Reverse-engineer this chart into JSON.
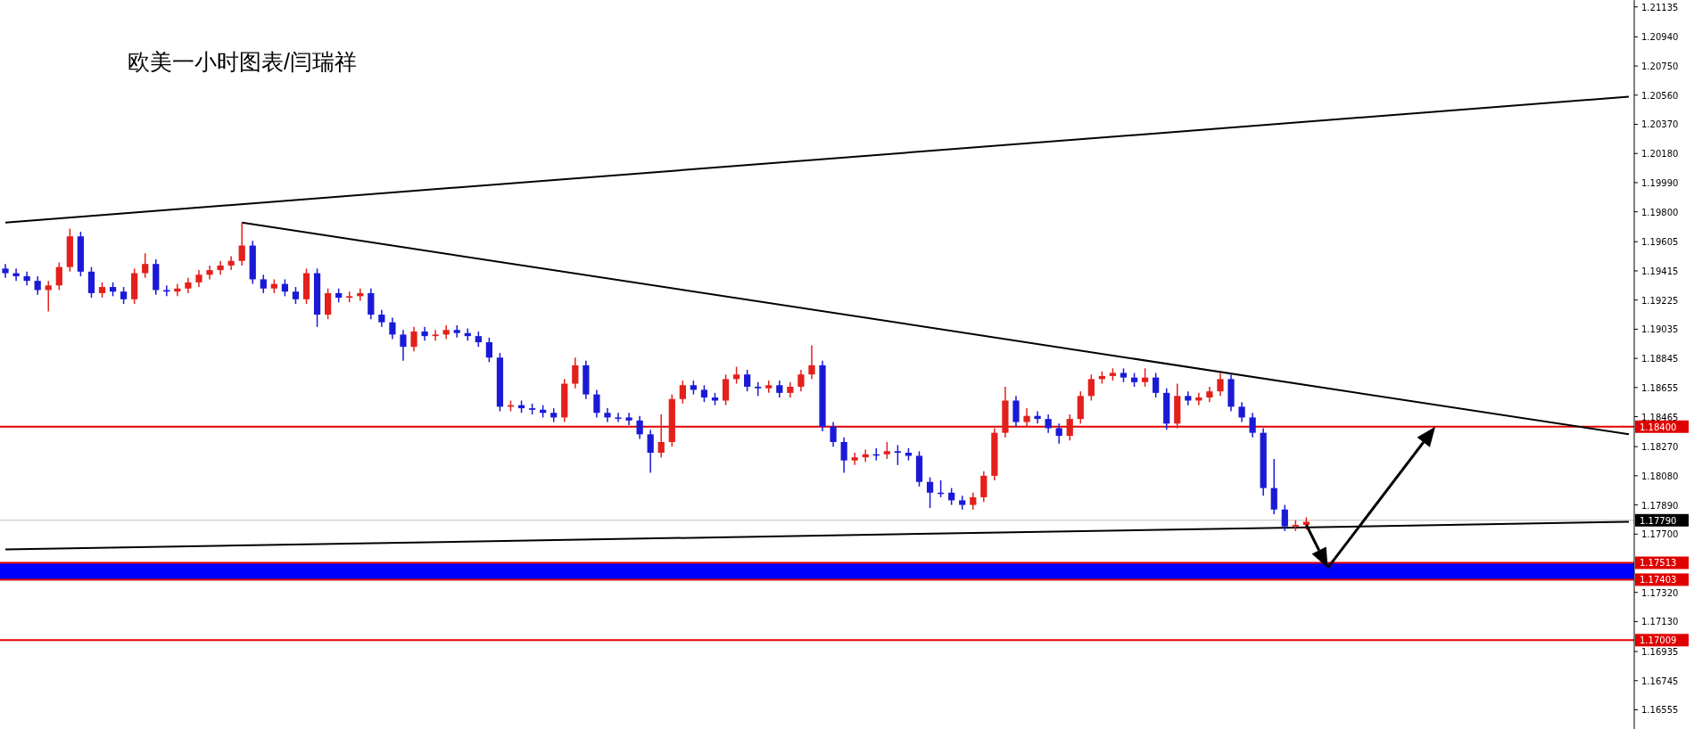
{
  "chart_data": {
    "type": "candlestick",
    "title": "欧美一小时图表/闫瑞祥",
    "categories": [
      null,
      null,
      null,
      null,
      null,
      null,
      null,
      null,
      null,
      null,
      null,
      null,
      null,
      null,
      null,
      null,
      null,
      null,
      null,
      null,
      null,
      null,
      null,
      null,
      null,
      null,
      null,
      null,
      null,
      null,
      null,
      null,
      null,
      null,
      null,
      null,
      null,
      null,
      null,
      null,
      null,
      null,
      null,
      null,
      null,
      null,
      null,
      null,
      null,
      null,
      null,
      null,
      null,
      null,
      null,
      null,
      null,
      null,
      null,
      null,
      null,
      null,
      null,
      null,
      null,
      null,
      null,
      null,
      null,
      null,
      null,
      null,
      null,
      null,
      null,
      null,
      null,
      null,
      null,
      null,
      null,
      null,
      null,
      null,
      null,
      null,
      null,
      null,
      null,
      null,
      null,
      null,
      null,
      null,
      null,
      null,
      null,
      null,
      null,
      null,
      null,
      null,
      null,
      null,
      null,
      null,
      null,
      null,
      null,
      null,
      null,
      null,
      null,
      null,
      null,
      null,
      null,
      null,
      null,
      null,
      null,
      null,
      null,
      null,
      null,
      null,
      null,
      null,
      null,
      null,
      null,
      null,
      null,
      null,
      null,
      null,
      null,
      null,
      null,
      null,
      null,
      null,
      null,
      null,
      null,
      null,
      null,
      null,
      null,
      null,
      null,
      null
    ],
    "ohlc": [
      [
        1.1943,
        1.1946,
        1.1937,
        1.194
      ],
      [
        1.194,
        1.1943,
        1.1935,
        1.1938
      ],
      [
        1.1938,
        1.1941,
        1.1932,
        1.1935
      ],
      [
        1.1935,
        1.1938,
        1.1926,
        1.1929
      ],
      [
        1.1929,
        1.1935,
        1.1915,
        1.1932
      ],
      [
        1.1932,
        1.1947,
        1.1929,
        1.1944
      ],
      [
        1.1944,
        1.1969,
        1.1941,
        1.1964
      ],
      [
        1.1964,
        1.1967,
        1.1938,
        1.1941
      ],
      [
        1.1941,
        1.1944,
        1.1924,
        1.1927
      ],
      [
        1.1927,
        1.1934,
        1.1924,
        1.1931
      ],
      [
        1.1931,
        1.1934,
        1.1925,
        1.1928
      ],
      [
        1.1928,
        1.1931,
        1.192,
        1.1923
      ],
      [
        1.1923,
        1.1943,
        1.192,
        1.194
      ],
      [
        1.194,
        1.1953,
        1.1937,
        1.1946
      ],
      [
        1.1946,
        1.1949,
        1.1926,
        1.1929
      ],
      [
        1.1929,
        1.1932,
        1.1925,
        1.1928
      ],
      [
        1.1928,
        1.1933,
        1.1925,
        1.193
      ],
      [
        1.193,
        1.1937,
        1.1927,
        1.1934
      ],
      [
        1.1934,
        1.1942,
        1.1931,
        1.1939
      ],
      [
        1.1939,
        1.1945,
        1.1936,
        1.1942
      ],
      [
        1.1942,
        1.1948,
        1.1939,
        1.1945
      ],
      [
        1.1945,
        1.1951,
        1.1942,
        1.1948
      ],
      [
        1.1948,
        1.1973,
        1.1945,
        1.1958
      ],
      [
        1.1958,
        1.1961,
        1.1933,
        1.1936
      ],
      [
        1.1936,
        1.1939,
        1.1927,
        1.193
      ],
      [
        1.193,
        1.1936,
        1.1927,
        1.1933
      ],
      [
        1.1933,
        1.1936,
        1.1925,
        1.1928
      ],
      [
        1.1928,
        1.1931,
        1.192,
        1.1923
      ],
      [
        1.1923,
        1.1943,
        1.192,
        1.194
      ],
      [
        1.194,
        1.1943,
        1.1905,
        1.1913
      ],
      [
        1.1913,
        1.193,
        1.191,
        1.1927
      ],
      [
        1.1927,
        1.193,
        1.1921,
        1.1924
      ],
      [
        1.1924,
        1.1928,
        1.1921,
        1.1925
      ],
      [
        1.1925,
        1.193,
        1.1922,
        1.1927
      ],
      [
        1.1927,
        1.193,
        1.191,
        1.1913
      ],
      [
        1.1913,
        1.1916,
        1.1905,
        1.1908
      ],
      [
        1.1908,
        1.1911,
        1.1897,
        1.19
      ],
      [
        1.19,
        1.1903,
        1.1883,
        1.1892
      ],
      [
        1.1892,
        1.1905,
        1.1889,
        1.1902
      ],
      [
        1.1902,
        1.1905,
        1.1896,
        1.1899
      ],
      [
        1.1899,
        1.1903,
        1.1896,
        1.19
      ],
      [
        1.19,
        1.1906,
        1.1897,
        1.1903
      ],
      [
        1.1903,
        1.1906,
        1.1898,
        1.1901
      ],
      [
        1.1901,
        1.1904,
        1.1896,
        1.1899
      ],
      [
        1.1899,
        1.1902,
        1.1892,
        1.1895
      ],
      [
        1.1895,
        1.1898,
        1.1882,
        1.1885
      ],
      [
        1.1885,
        1.1888,
        1.185,
        1.1853
      ],
      [
        1.1853,
        1.1857,
        1.185,
        1.1854
      ],
      [
        1.1854,
        1.1857,
        1.1849,
        1.1852
      ],
      [
        1.1852,
        1.1855,
        1.1848,
        1.1851
      ],
      [
        1.1851,
        1.1854,
        1.1846,
        1.1849
      ],
      [
        1.1849,
        1.1852,
        1.1843,
        1.1846
      ],
      [
        1.1846,
        1.1871,
        1.1843,
        1.1868
      ],
      [
        1.1868,
        1.1885,
        1.1865,
        1.188
      ],
      [
        1.188,
        1.1883,
        1.1858,
        1.1861
      ],
      [
        1.1861,
        1.1864,
        1.1846,
        1.1849
      ],
      [
        1.1849,
        1.1852,
        1.1843,
        1.1846
      ],
      [
        1.1846,
        1.1849,
        1.1843,
        1.1846
      ],
      [
        1.1846,
        1.1849,
        1.1841,
        1.1844
      ],
      [
        1.1844,
        1.1847,
        1.1832,
        1.1835
      ],
      [
        1.1835,
        1.1838,
        1.181,
        1.1823
      ],
      [
        1.1823,
        1.1848,
        1.182,
        1.183
      ],
      [
        1.183,
        1.1861,
        1.1827,
        1.1858
      ],
      [
        1.1858,
        1.187,
        1.1855,
        1.1867
      ],
      [
        1.1867,
        1.187,
        1.1861,
        1.1864
      ],
      [
        1.1864,
        1.1867,
        1.1856,
        1.1859
      ],
      [
        1.1859,
        1.1862,
        1.1854,
        1.1857
      ],
      [
        1.1857,
        1.1874,
        1.1854,
        1.1871
      ],
      [
        1.1871,
        1.1879,
        1.1868,
        1.1874
      ],
      [
        1.1874,
        1.1877,
        1.1863,
        1.1866
      ],
      [
        1.1866,
        1.1869,
        1.186,
        1.1865
      ],
      [
        1.1865,
        1.187,
        1.1862,
        1.1867
      ],
      [
        1.1867,
        1.187,
        1.1859,
        1.1862
      ],
      [
        1.1862,
        1.1869,
        1.1859,
        1.1866
      ],
      [
        1.1866,
        1.1877,
        1.1863,
        1.1874
      ],
      [
        1.1874,
        1.1893,
        1.1871,
        1.188
      ],
      [
        1.188,
        1.1883,
        1.1837,
        1.184
      ],
      [
        1.184,
        1.1843,
        1.1827,
        1.183
      ],
      [
        1.183,
        1.1833,
        1.181,
        1.1818
      ],
      [
        1.1818,
        1.1823,
        1.1815,
        1.182
      ],
      [
        1.182,
        1.1825,
        1.1817,
        1.1822
      ],
      [
        1.1822,
        1.1826,
        1.1818,
        1.1822
      ],
      [
        1.1822,
        1.183,
        1.1819,
        1.1824
      ],
      [
        1.1824,
        1.1828,
        1.1815,
        1.1823
      ],
      [
        1.1823,
        1.1826,
        1.1818,
        1.1821
      ],
      [
        1.1821,
        1.1824,
        1.1801,
        1.1804
      ],
      [
        1.1804,
        1.1807,
        1.1787,
        1.1797
      ],
      [
        1.1797,
        1.1805,
        1.1794,
        1.1797
      ],
      [
        1.1797,
        1.18,
        1.1789,
        1.1792
      ],
      [
        1.1792,
        1.1795,
        1.1786,
        1.1789
      ],
      [
        1.1789,
        1.1797,
        1.1786,
        1.1794
      ],
      [
        1.1794,
        1.1811,
        1.1791,
        1.1808
      ],
      [
        1.1808,
        1.1839,
        1.1805,
        1.1836
      ],
      [
        1.1836,
        1.1866,
        1.1833,
        1.1857
      ],
      [
        1.1857,
        1.186,
        1.184,
        1.1843
      ],
      [
        1.1843,
        1.1852,
        1.184,
        1.1847
      ],
      [
        1.1847,
        1.185,
        1.1842,
        1.1845
      ],
      [
        1.1845,
        1.1848,
        1.1836,
        1.1839
      ],
      [
        1.1839,
        1.1842,
        1.1829,
        1.1834
      ],
      [
        1.1834,
        1.1848,
        1.1831,
        1.1845
      ],
      [
        1.1845,
        1.1863,
        1.1842,
        1.186
      ],
      [
        1.186,
        1.1874,
        1.1857,
        1.1871
      ],
      [
        1.1871,
        1.1876,
        1.1868,
        1.1873
      ],
      [
        1.1873,
        1.1878,
        1.187,
        1.1875
      ],
      [
        1.1875,
        1.1878,
        1.1869,
        1.1872
      ],
      [
        1.1872,
        1.1875,
        1.1866,
        1.1869
      ],
      [
        1.1869,
        1.1878,
        1.1866,
        1.1872
      ],
      [
        1.1872,
        1.1875,
        1.1859,
        1.1862
      ],
      [
        1.1862,
        1.1865,
        1.1838,
        1.1842
      ],
      [
        1.1842,
        1.1868,
        1.1839,
        1.186
      ],
      [
        1.186,
        1.1863,
        1.1854,
        1.1857
      ],
      [
        1.1857,
        1.1862,
        1.1854,
        1.1859
      ],
      [
        1.1859,
        1.1866,
        1.1856,
        1.1863
      ],
      [
        1.1863,
        1.1875,
        1.186,
        1.1871
      ],
      [
        1.1871,
        1.1874,
        1.185,
        1.1853
      ],
      [
        1.1853,
        1.1856,
        1.1843,
        1.1846
      ],
      [
        1.1846,
        1.1849,
        1.1833,
        1.1836
      ],
      [
        1.1836,
        1.1839,
        1.1795,
        1.18
      ],
      [
        1.18,
        1.1819,
        1.1783,
        1.1786
      ],
      [
        1.1786,
        1.1789,
        1.1772,
        1.1775
      ],
      [
        1.1775,
        1.1779,
        1.1772,
        1.1776
      ],
      [
        1.1776,
        1.1781,
        1.1773,
        1.1778
      ],
      null,
      null,
      null,
      null,
      null,
      null,
      null,
      null,
      null,
      null,
      null,
      null,
      null,
      null,
      null,
      null,
      null,
      null,
      null,
      null,
      null,
      null,
      null,
      null,
      null,
      null,
      null,
      null,
      null,
      null
    ],
    "colors": [
      "#1a1ad6",
      "#1a1ad6",
      "#1a1ad6",
      "#1a1ad6",
      "#e3201b",
      "#e3201b",
      "#e3201b",
      "#1a1ad6",
      "#1a1ad6",
      "#e3201b",
      "#1a1ad6",
      "#1a1ad6",
      "#e3201b",
      "#e3201b",
      "#1a1ad6",
      "#1a1ad6",
      "#e3201b",
      "#e3201b",
      "#e3201b",
      "#e3201b",
      "#e3201b",
      "#e3201b",
      "#e3201b",
      "#1a1ad6",
      "#1a1ad6",
      "#e3201b",
      "#1a1ad6",
      "#1a1ad6",
      "#e3201b",
      "#1a1ad6",
      "#e3201b",
      "#1a1ad6",
      "#e3201b",
      "#e3201b",
      "#1a1ad6",
      "#1a1ad6",
      "#1a1ad6",
      "#1a1ad6",
      "#e3201b",
      "#1a1ad6",
      "#e3201b",
      "#e3201b",
      "#1a1ad6",
      "#1a1ad6",
      "#1a1ad6",
      "#1a1ad6",
      "#1a1ad6",
      "#e3201b",
      "#1a1ad6",
      "#1a1ad6",
      "#1a1ad6",
      "#1a1ad6",
      "#e3201b",
      "#e3201b",
      "#1a1ad6",
      "#1a1ad6",
      "#1a1ad6",
      "#1a1ad6",
      "#1a1ad6",
      "#1a1ad6",
      "#1a1ad6",
      "#e3201b",
      "#e3201b",
      "#e3201b",
      "#1a1ad6",
      "#1a1ad6",
      "#1a1ad6",
      "#e3201b",
      "#e3201b",
      "#1a1ad6",
      "#1a1ad6",
      "#e3201b",
      "#1a1ad6",
      "#e3201b",
      "#e3201b",
      "#e3201b",
      "#1a1ad6",
      "#1a1ad6",
      "#1a1ad6",
      "#e3201b",
      "#e3201b",
      "#1a1ad6",
      "#e3201b",
      "#1a1ad6",
      "#1a1ad6",
      "#1a1ad6",
      "#1a1ad6",
      "#1a1ad6",
      "#1a1ad6",
      "#1a1ad6",
      "#e3201b",
      "#e3201b",
      "#e3201b",
      "#e3201b",
      "#1a1ad6",
      "#e3201b",
      "#1a1ad6",
      "#1a1ad6",
      "#1a1ad6",
      "#e3201b",
      "#e3201b",
      "#e3201b",
      "#e3201b",
      "#e3201b",
      "#1a1ad6",
      "#1a1ad6",
      "#e3201b",
      "#1a1ad6",
      "#1a1ad6",
      "#e3201b",
      "#1a1ad6",
      "#e3201b",
      "#e3201b",
      "#e3201b",
      "#1a1ad6",
      "#1a1ad6",
      "#1a1ad6",
      "#1a1ad6",
      "#1a1ad6",
      "#1a1ad6",
      "#e3201b",
      "#e3201b",
      null,
      null,
      null,
      null,
      null,
      null,
      null,
      null,
      null,
      null,
      null,
      null,
      null,
      null,
      null,
      null,
      null,
      null,
      null,
      null,
      null,
      null,
      null,
      null,
      null,
      null,
      null,
      null,
      null,
      null
    ],
    "series": [
      {
        "type": "line",
        "color": "#000000",
        "values": [
          1.1973,
          null,
          null,
          null,
          null,
          null,
          null,
          null,
          null,
          null,
          null,
          null,
          null,
          null,
          null,
          null,
          null,
          null,
          null,
          null,
          null,
          null,
          null,
          null,
          null,
          null,
          null,
          null,
          null,
          null,
          null,
          null,
          null,
          null,
          null,
          null,
          null,
          null,
          null,
          null,
          null,
          null,
          null,
          null,
          null,
          null,
          null,
          null,
          null,
          null,
          null,
          null,
          null,
          null,
          null,
          null,
          null,
          null,
          null,
          null,
          null,
          null,
          null,
          null,
          null,
          null,
          null,
          null,
          null,
          null,
          null,
          null,
          null,
          null,
          null,
          null,
          null,
          null,
          null,
          null,
          null,
          null,
          null,
          null,
          null,
          null,
          null,
          null,
          null,
          null,
          null,
          null,
          null,
          null,
          null,
          null,
          null,
          null,
          null,
          null,
          null,
          null,
          null,
          null,
          null,
          null,
          null,
          null,
          null,
          null,
          null,
          null,
          null,
          null,
          null,
          null,
          null,
          null,
          null,
          null,
          null,
          null,
          null,
          null,
          null,
          null,
          null,
          null,
          null,
          null,
          null,
          null,
          null,
          null,
          null,
          null,
          null,
          null,
          null,
          null,
          null,
          null,
          null,
          null,
          null,
          null,
          null,
          null,
          null,
          null,
          null,
          1.2055
        ]
      },
      {
        "type": "line",
        "color": "#000000",
        "values": [
          null,
          null,
          null,
          null,
          null,
          null,
          null,
          null,
          null,
          null,
          null,
          null,
          null,
          null,
          null,
          null,
          null,
          null,
          null,
          null,
          null,
          null,
          1.1973,
          null,
          null,
          null,
          null,
          null,
          null,
          null,
          null,
          null,
          null,
          null,
          null,
          null,
          null,
          null,
          null,
          null,
          null,
          null,
          null,
          null,
          null,
          null,
          null,
          null,
          null,
          null,
          null,
          null,
          null,
          null,
          null,
          null,
          null,
          null,
          null,
          null,
          null,
          null,
          null,
          null,
          null,
          null,
          null,
          null,
          null,
          null,
          null,
          null,
          null,
          null,
          null,
          null,
          null,
          null,
          null,
          null,
          null,
          null,
          null,
          null,
          null,
          null,
          null,
          null,
          null,
          null,
          null,
          null,
          null,
          null,
          null,
          null,
          null,
          null,
          null,
          null,
          null,
          null,
          null,
          null,
          null,
          null,
          null,
          null,
          null,
          null,
          null,
          null,
          null,
          null,
          null,
          null,
          null,
          null,
          null,
          null,
          null,
          null,
          null,
          null,
          null,
          null,
          null,
          null,
          null,
          null,
          null,
          null,
          null,
          null,
          null,
          null,
          null,
          null,
          null,
          null,
          null,
          null,
          null,
          null,
          null,
          null,
          null,
          null,
          null,
          null,
          null,
          1.1835
        ]
      },
      {
        "type": "line",
        "color": "#000000",
        "values": [
          1.176,
          null,
          null,
          null,
          null,
          null,
          null,
          null,
          null,
          null,
          null,
          null,
          null,
          null,
          null,
          null,
          null,
          null,
          null,
          null,
          null,
          null,
          null,
          null,
          null,
          null,
          null,
          null,
          null,
          null,
          null,
          null,
          null,
          null,
          null,
          null,
          null,
          null,
          null,
          null,
          null,
          null,
          null,
          null,
          null,
          null,
          null,
          null,
          null,
          null,
          null,
          null,
          null,
          null,
          null,
          null,
          null,
          null,
          null,
          null,
          null,
          null,
          null,
          null,
          null,
          null,
          null,
          null,
          null,
          null,
          null,
          null,
          null,
          null,
          null,
          null,
          null,
          null,
          null,
          null,
          null,
          null,
          null,
          null,
          null,
          null,
          null,
          null,
          null,
          null,
          null,
          null,
          null,
          null,
          null,
          null,
          null,
          null,
          null,
          null,
          null,
          null,
          null,
          null,
          null,
          null,
          null,
          null,
          null,
          null,
          null,
          null,
          null,
          null,
          null,
          null,
          null,
          null,
          null,
          null,
          null,
          null,
          null,
          null,
          null,
          null,
          null,
          null,
          null,
          null,
          null,
          null,
          null,
          null,
          null,
          null,
          null,
          null,
          null,
          null,
          null,
          null,
          null,
          null,
          null,
          null,
          null,
          null,
          null,
          null,
          null,
          1.1778
        ]
      }
    ],
    "ylim": [
      1.1643,
      1.2118
    ],
    "yticks": [
      1.21135,
      {
        "value": 1.2094,
        "label": "1.20940"
      },
      {
        "value": 1.2075,
        "label": "1.20750"
      },
      {
        "value": 1.2056,
        "label": "1.20560"
      },
      {
        "value": 1.2037,
        "label": "1.20370"
      },
      {
        "value": 1.2018,
        "label": "1.20180"
      },
      {
        "value": 1.1999,
        "label": "1.19990"
      },
      {
        "value": 1.198,
        "label": "1.19800"
      },
      1.19605,
      1.19415,
      1.19225,
      1.19035,
      1.18845,
      1.18655,
      1.18465,
      {
        "value": 1.1827,
        "label": "1.18270"
      },
      {
        "value": 1.1808,
        "label": "1.18080"
      },
      {
        "value": 1.1789,
        "label": "1.17890"
      },
      {
        "value": 1.177,
        "label": "1.17700"
      },
      {
        "value": 1.1732,
        "label": "1.17320"
      },
      {
        "value": 1.1713,
        "label": "1.17130"
      },
      1.16935,
      1.16745,
      1.16555
    ],
    "ref_lines": [
      {
        "axis": "y",
        "value": 1.184,
        "label": "1.18400",
        "color": "#e00000"
      },
      {
        "axis": "y",
        "value": 1.1779,
        "label": "1.17790",
        "color": "#bdbdbd"
      },
      {
        "axis": "y",
        "value": 1.17513,
        "label": "1.17513",
        "color": "#e00000"
      },
      {
        "axis": "y",
        "value": 1.17403,
        "label": "1.17403",
        "color": "#e00000"
      },
      {
        "axis": "y",
        "value": 1.17009,
        "label": "1.17009",
        "color": "#e00000"
      }
    ],
    "bands": [
      {
        "axis": "y",
        "from": 1.17403,
        "to": 1.17513,
        "color": "#0000ff"
      }
    ],
    "tick_labels": "y",
    "grid": false
  }
}
